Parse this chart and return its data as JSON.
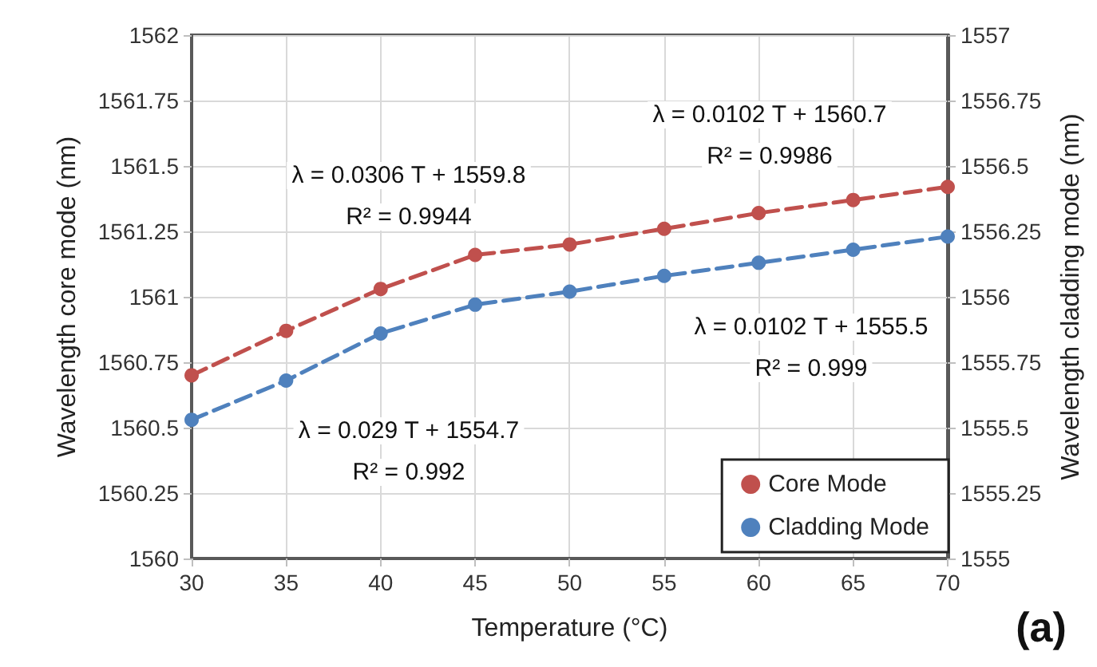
{
  "chart_data": {
    "type": "line",
    "xlabel": "Temperature (°C)",
    "ylabel": "Wavelength core mode (nm)",
    "y2label": "Wavelength cladding mode (nm)",
    "x": [
      30,
      35,
      40,
      45,
      50,
      55,
      60,
      65,
      70
    ],
    "series": [
      {
        "name": "Core Mode",
        "color": "#c0504d",
        "values": [
          1560.7,
          1560.87,
          1561.03,
          1561.16,
          1561.2,
          1561.26,
          1561.32,
          1561.37,
          1561.42
        ]
      },
      {
        "name": "Cladding Mode",
        "color": "#4f81bd",
        "axis": "y2",
        "values": [
          1555.53,
          1555.68,
          1555.86,
          1555.97,
          1556.02,
          1556.08,
          1556.13,
          1556.18,
          1556.23
        ]
      }
    ],
    "xlim": [
      30,
      70
    ],
    "xticks": [
      30,
      35,
      40,
      45,
      50,
      55,
      60,
      65,
      70
    ],
    "ylim": [
      1560,
      1562
    ],
    "yticks": [
      1560,
      1560.25,
      1560.5,
      1560.75,
      1561,
      1561.25,
      1561.5,
      1561.75,
      1562
    ],
    "y2lim": [
      1555,
      1557
    ],
    "y2ticks": [
      1555,
      1555.25,
      1555.5,
      1555.75,
      1556,
      1556.25,
      1556.5,
      1556.75,
      1557
    ],
    "annotations": [
      "λ = 0.0306 T + 1559.8",
      "R² = 0.9944",
      "λ = 0.0102 T + 1560.7",
      "R² = 0.9986",
      "λ = 0.029 T + 1554.7",
      "R² = 0.992",
      "λ = 0.0102 T + 1555.5",
      "R² = 0.999",
      "(a)"
    ],
    "grid": true,
    "legend": "bottom right",
    "marker": "circle",
    "line_style": "dashed"
  }
}
